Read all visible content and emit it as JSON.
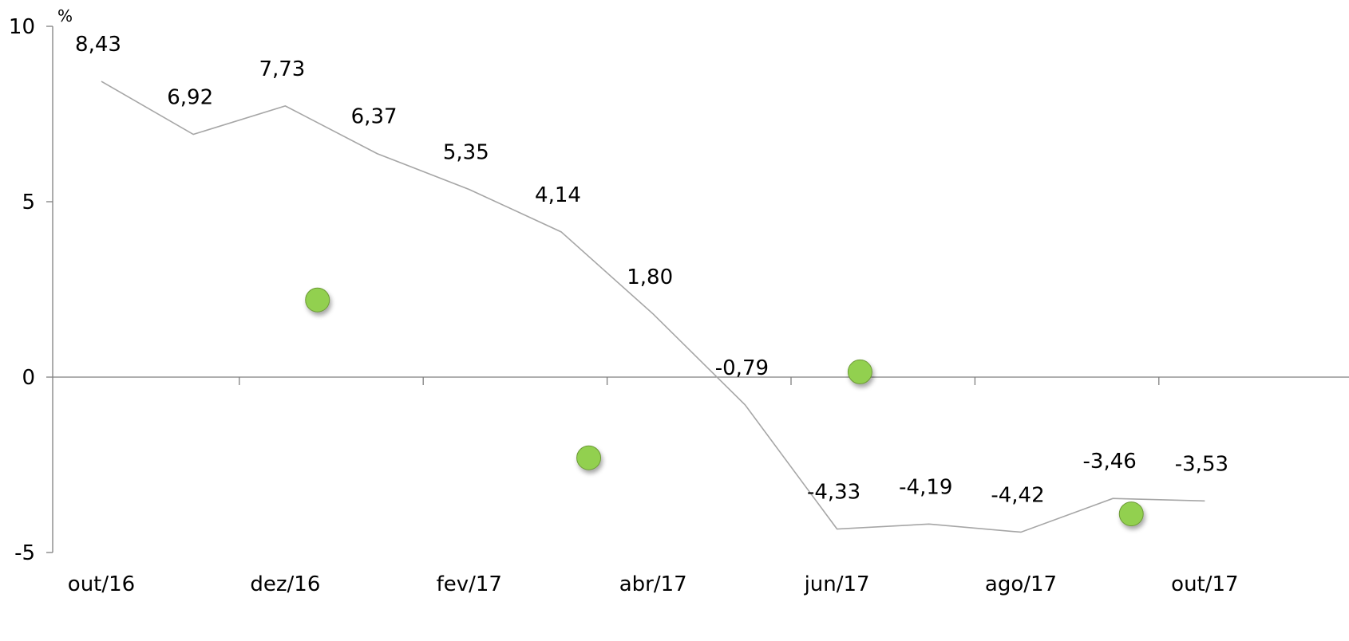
{
  "chart_data": {
    "type": "line",
    "title": "",
    "xlabel": "",
    "ylabel": "%",
    "ylim": [
      -5,
      10
    ],
    "yticks": [
      "-5",
      "0",
      "5",
      "10"
    ],
    "grid": false,
    "legend": "none",
    "x_tick_labels": [
      "out/16",
      "dez/16",
      "fev/17",
      "abr/17",
      "jun/17",
      "ago/17",
      "out/17"
    ],
    "series": [
      {
        "type": "line",
        "color": "#a6a6a6",
        "points": [
          {
            "x": "out/16",
            "y": 8.43,
            "label": "8,43"
          },
          {
            "x": "nov/16",
            "y": 6.92,
            "label": "6,92"
          },
          {
            "x": "dez/16",
            "y": 7.73,
            "label": "7,73"
          },
          {
            "x": "jan/17",
            "y": 6.37,
            "label": "6,37"
          },
          {
            "x": "fev/17",
            "y": 5.35,
            "label": "5,35"
          },
          {
            "x": "mar/17",
            "y": 4.14,
            "label": "4,14"
          },
          {
            "x": "abr/17",
            "y": 1.8,
            "label": "1,80"
          },
          {
            "x": "mai/17",
            "y": -0.79,
            "label": "-0,79"
          },
          {
            "x": "jun/17",
            "y": -4.33,
            "label": "-4,33"
          },
          {
            "x": "jul/17",
            "y": -4.19,
            "label": "-4,19"
          },
          {
            "x": "ago/17",
            "y": -4.42,
            "label": "-4,42"
          },
          {
            "x": "set/17",
            "y": -3.46,
            "label": "-3,46"
          },
          {
            "x": "out/17",
            "y": -3.53,
            "label": "-3,53"
          }
        ]
      },
      {
        "type": "scatter",
        "color": "#92d050",
        "points": [
          {
            "x": 2.35,
            "y": 2.2
          },
          {
            "x": 5.3,
            "y": -2.3
          },
          {
            "x": 8.25,
            "y": 0.15
          },
          {
            "x": 11.2,
            "y": -3.9
          }
        ]
      }
    ]
  }
}
